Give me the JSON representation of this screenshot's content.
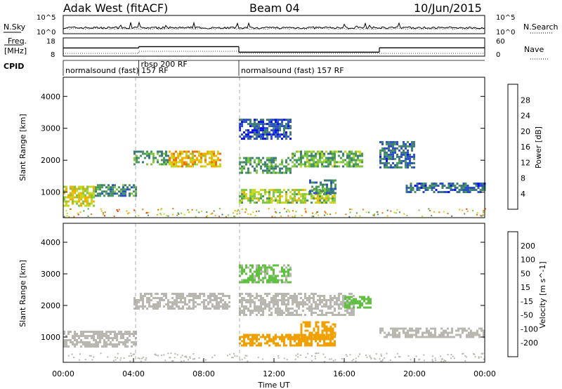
{
  "header": {
    "radar": "Adak West (fitACF)",
    "beam": "Beam 04",
    "date": "10/Jun/2015"
  },
  "noise_panel": {
    "left_label": "N.Sky",
    "right_label": "N.Search",
    "left_ticks": [
      "10^5",
      "10^0"
    ],
    "right_ticks": [
      "10^5",
      "10^0"
    ]
  },
  "freq_panel": {
    "left_label_line1": "Freq.",
    "left_label_line2": "[MHz]",
    "right_label": "Nave",
    "left_ticks": [
      "18",
      "8"
    ],
    "right_ticks": [
      "60",
      "0"
    ],
    "freq_segments": [
      {
        "start": 0.0,
        "end": 4.3,
        "level": 12.5
      },
      {
        "start": 4.3,
        "end": 10.0,
        "level": 13.2
      },
      {
        "start": 10.0,
        "end": 18.0,
        "level": 10.2
      },
      {
        "start": 18.0,
        "end": 24.0,
        "level": 12.6
      }
    ]
  },
  "cpid": {
    "label": "CPID",
    "segments": [
      {
        "start": 0.0,
        "end": 4.3,
        "name": "normalsound (fast) 157 RF"
      },
      {
        "start": 4.3,
        "end": 10.0,
        "name": "rbsp 200 RF"
      },
      {
        "start": 10.0,
        "end": 24.0,
        "name": "normalsound (fast) 157 RF"
      }
    ]
  },
  "chart_data": [
    {
      "type": "heatmap",
      "name": "power",
      "ylabel": "Slant Range [km]",
      "y_ticks": [
        1000,
        2000,
        3000,
        4000
      ],
      "ylim": [
        200,
        4600
      ],
      "xlim": [
        0,
        24
      ],
      "colorbar": {
        "label": "Power [dB]",
        "ticks": [
          4,
          8,
          12,
          16,
          20,
          24,
          28
        ],
        "range": [
          0,
          32
        ],
        "colors": [
          "#0a10f0",
          "#2a4fc8",
          "#3d7a7a",
          "#4a9a5a",
          "#7fc840",
          "#c8d820",
          "#f0b000",
          "#f07000",
          "#f03000"
        ]
      },
      "bands": [
        {
          "x": [
            0.0,
            1.8
          ],
          "y": [
            600,
            1200
          ],
          "value": 20
        },
        {
          "x": [
            1.8,
            4.2
          ],
          "y": [
            900,
            1250
          ],
          "value": 10
        },
        {
          "x": [
            4.0,
            6.0
          ],
          "y": [
            1900,
            2300
          ],
          "value": 12
        },
        {
          "x": [
            6.0,
            9.0
          ],
          "y": [
            1800,
            2300
          ],
          "value": 22
        },
        {
          "x": [
            10.0,
            13.0
          ],
          "y": [
            1600,
            2100
          ],
          "value": 12
        },
        {
          "x": [
            13.0,
            17.0
          ],
          "y": [
            1800,
            2300
          ],
          "value": 14
        },
        {
          "x": [
            10.0,
            15.5
          ],
          "y": [
            700,
            1100
          ],
          "value": 18
        },
        {
          "x": [
            14.0,
            15.5
          ],
          "y": [
            1000,
            1400
          ],
          "value": 10
        },
        {
          "x": [
            18.0,
            20.0
          ],
          "y": [
            1800,
            2600
          ],
          "value": 8
        },
        {
          "x": [
            19.5,
            24.0
          ],
          "y": [
            1000,
            1300
          ],
          "value": 8
        },
        {
          "x": [
            10.0,
            13.0
          ],
          "y": [
            2700,
            3300
          ],
          "value": 6
        }
      ]
    },
    {
      "type": "heatmap",
      "name": "velocity",
      "ylabel": "Slant Range [km]",
      "xlabel": "Time UT",
      "x_ticks": [
        "00:00",
        "04:00",
        "08:00",
        "12:00",
        "16:00",
        "20:00",
        "00:00"
      ],
      "y_ticks": [
        1000,
        2000,
        3000,
        4000
      ],
      "ylim": [
        200,
        4600
      ],
      "xlim": [
        0,
        24
      ],
      "colorbar": {
        "label": "Velocity [m s^-1]",
        "ticks": [
          200,
          100,
          50,
          15,
          -15,
          -50,
          -100,
          -200
        ],
        "colors": [
          "#1020c0",
          "#2050d0",
          "#208060",
          "#60c040",
          "#b8b8b0",
          "#f0a000",
          "#f07000",
          "#f03000",
          "#e00000"
        ]
      },
      "bands": [
        {
          "x": [
            0.0,
            4.2
          ],
          "y": [
            700,
            1200
          ],
          "value": -10
        },
        {
          "x": [
            4.0,
            9.5
          ],
          "y": [
            1900,
            2400
          ],
          "value": -10
        },
        {
          "x": [
            10.0,
            16.5
          ],
          "y": [
            1700,
            2400
          ],
          "value": -10
        },
        {
          "x": [
            16.0,
            17.5
          ],
          "y": [
            1900,
            2300
          ],
          "value": 40
        },
        {
          "x": [
            10.0,
            15.5
          ],
          "y": [
            700,
            1100
          ],
          "value": -45
        },
        {
          "x": [
            13.5,
            15.5
          ],
          "y": [
            1000,
            1500
          ],
          "value": -30
        },
        {
          "x": [
            18.0,
            24.0
          ],
          "y": [
            1000,
            1300
          ],
          "value": -10
        },
        {
          "x": [
            10.0,
            13.0
          ],
          "y": [
            2700,
            3300
          ],
          "value": 25
        }
      ]
    }
  ]
}
